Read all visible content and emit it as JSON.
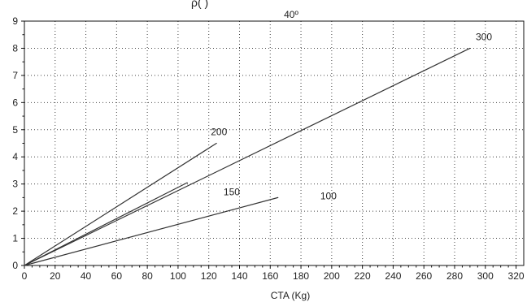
{
  "chart_data": {
    "type": "line",
    "title": "40º",
    "title_fragment_visible": "ρ(                    )",
    "xlabel": "CTA (Kg)",
    "ylabel": "",
    "xlim": [
      0,
      325
    ],
    "ylim": [
      0,
      9
    ],
    "x_ticks": [
      0,
      20,
      40,
      60,
      80,
      100,
      120,
      140,
      160,
      180,
      200,
      220,
      240,
      260,
      280,
      300,
      320
    ],
    "y_ticks": [
      0,
      1,
      2,
      3,
      4,
      5,
      6,
      7,
      8,
      9
    ],
    "x_tick_labels": [
      "0",
      "20",
      "40",
      "60",
      "80",
      "100",
      "120",
      "140",
      "160",
      "180",
      "200",
      "220",
      "240",
      "260",
      "280",
      "300",
      "320"
    ],
    "y_tick_labels": [
      "0",
      "1",
      "2",
      "3",
      "4",
      "5",
      "6",
      "7",
      "8",
      "9"
    ],
    "grid": true,
    "series": [
      {
        "name": "300",
        "x": [
          0,
          290
        ],
        "y": [
          0,
          8.0
        ]
      },
      {
        "name": "200",
        "x": [
          0,
          125
        ],
        "y": [
          0,
          4.5
        ]
      },
      {
        "name": "150",
        "x": [
          0,
          106
        ],
        "y": [
          0,
          3.05
        ]
      },
      {
        "name": "100",
        "x": [
          0,
          165
        ],
        "y": [
          0,
          2.5
        ]
      }
    ],
    "colors": {
      "line": "#333333",
      "grid": "#444444",
      "axis": "#111111",
      "text": "#222222"
    }
  }
}
